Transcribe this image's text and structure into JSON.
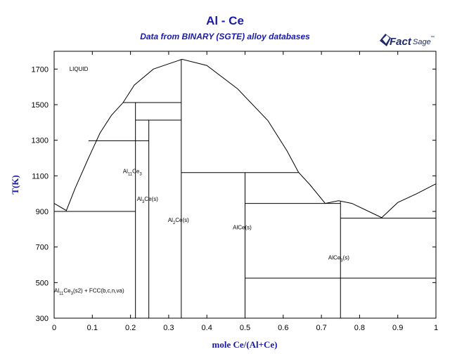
{
  "header": {
    "title": "Al - Ce",
    "subtitle": "Data from BINARY (SGTE) alloy databases"
  },
  "logo": {
    "word1": "Fact",
    "word2": "Sage",
    "mark": "™",
    "icon": "factsage-logo-icon",
    "color": "#1f2a6e"
  },
  "chart_data": {
    "type": "diagram",
    "xlabel": "mole Ce/(Al+Ce)",
    "ylabel": "T(K)",
    "xlim": [
      0,
      1
    ],
    "ylim": [
      300,
      1800
    ],
    "x_ticks": [
      "0",
      "0.1",
      "0.2",
      "0.3",
      "0.4",
      "0.5",
      "0.6",
      "0.7",
      "0.8",
      "0.9",
      "1"
    ],
    "y_ticks": [
      "300",
      "500",
      "700",
      "900",
      "1100",
      "1300",
      "1500",
      "1700"
    ],
    "liquidus_segments": [
      [
        [
          0,
          945
        ],
        [
          0.032,
          905
        ],
        [
          0.055,
          1030
        ],
        [
          0.09,
          1200
        ],
        [
          0.12,
          1340
        ],
        [
          0.15,
          1440
        ],
        [
          0.18,
          1510
        ]
      ],
      [
        [
          0.18,
          1510
        ],
        [
          0.21,
          1610
        ],
        [
          0.26,
          1700
        ],
        [
          0.335,
          1755
        ],
        [
          0.4,
          1720
        ],
        [
          0.48,
          1590
        ],
        [
          0.56,
          1410
        ],
        [
          0.61,
          1240
        ],
        [
          0.64,
          1120
        ]
      ],
      [
        [
          0.64,
          1120
        ],
        [
          0.67,
          1050
        ],
        [
          0.71,
          945
        ],
        [
          0.745,
          960
        ],
        [
          0.78,
          945
        ],
        [
          0.858,
          865
        ]
      ],
      [
        [
          0.858,
          865
        ],
        [
          0.9,
          950
        ],
        [
          0.95,
          1000
        ],
        [
          1.0,
          1055
        ]
      ]
    ],
    "horizontal_lines": [
      {
        "x": [
          0,
          0.213
        ],
        "y": 900
      },
      {
        "x": [
          0.09,
          0.248
        ],
        "y": 1297
      },
      {
        "x": [
          0.18,
          0.333
        ],
        "y": 1512
      },
      {
        "x": [
          0.213,
          0.333
        ],
        "y": 1413
      },
      {
        "x": [
          0.333,
          0.64
        ],
        "y": 1118
      },
      {
        "x": [
          0.5,
          0.75
        ],
        "y": 945
      },
      {
        "x": [
          0.5,
          1.0
        ],
        "y": 525
      },
      {
        "x": [
          0.75,
          1.0
        ],
        "y": 862
      }
    ],
    "vertical_lines": [
      {
        "x": 0.213,
        "y": [
          300,
          1512
        ]
      },
      {
        "x": 0.248,
        "y": [
          300,
          1413
        ]
      },
      {
        "x": 0.333,
        "y": [
          300,
          1755
        ]
      },
      {
        "x": 0.5,
        "y": [
          300,
          1118
        ]
      },
      {
        "x": 0.75,
        "y": [
          300,
          958
        ]
      }
    ],
    "region_labels": [
      {
        "id": "liquid",
        "x": 0.04,
        "y": 1690,
        "parts": [
          {
            "t": "LIQUID"
          }
        ]
      },
      {
        "id": "al11ce3",
        "x": 0.18,
        "y": 1115,
        "parts": [
          {
            "t": "Al"
          },
          {
            "t": "11",
            "sub": true
          },
          {
            "t": "Ce"
          },
          {
            "t": "3",
            "sub": true
          }
        ]
      },
      {
        "id": "al3ce",
        "x": 0.217,
        "y": 960,
        "parts": [
          {
            "t": "Al"
          },
          {
            "t": "3",
            "sub": true
          },
          {
            "t": "Ce(s)"
          }
        ]
      },
      {
        "id": "al2ce",
        "x": 0.298,
        "y": 840,
        "parts": [
          {
            "t": "Al"
          },
          {
            "t": "2",
            "sub": true
          },
          {
            "t": "Ce(s)"
          }
        ]
      },
      {
        "id": "alce",
        "x": 0.468,
        "y": 800,
        "parts": [
          {
            "t": "AlCe(s)"
          }
        ]
      },
      {
        "id": "alce3",
        "x": 0.718,
        "y": 630,
        "parts": [
          {
            "t": "AlCe"
          },
          {
            "t": "3",
            "sub": true
          },
          {
            "t": "(s)"
          }
        ]
      },
      {
        "id": "fcc",
        "x": 0.0,
        "y": 445,
        "parts": [
          {
            "t": "Al"
          },
          {
            "t": "11",
            "sub": true
          },
          {
            "t": "Ce"
          },
          {
            "t": "3",
            "sub": true
          },
          {
            "t": "(s2) + FCC(b,c,n,va)"
          }
        ]
      }
    ]
  }
}
